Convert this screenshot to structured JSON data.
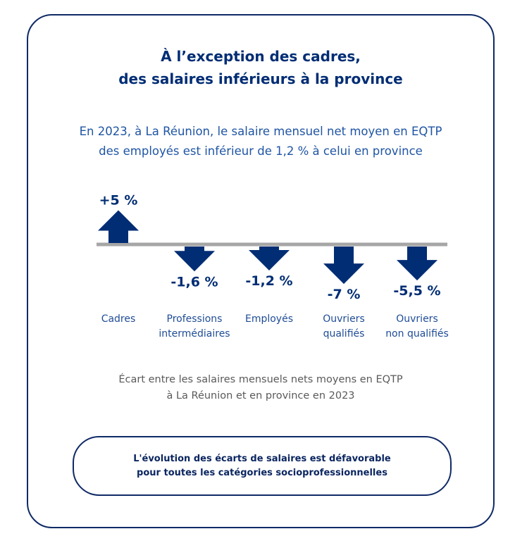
{
  "title": {
    "line1": "À l’exception des cadres,",
    "line2": "des salaires inférieurs à la province"
  },
  "subtitle": {
    "line1": "En 2023, à La Réunion, le salaire mensuel net moyen en EQTP",
    "line2": "des employés est inférieur de 1,2 % à celui en province"
  },
  "chart_data": {
    "type": "bar",
    "title": "Écart entre les salaires mensuels nets moyens en EQTP à La Réunion et en province en 2023",
    "unit": "%",
    "categories": [
      {
        "line1": "Cadres",
        "line2": ""
      },
      {
        "line1": "Professions",
        "line2": "intermédiaires"
      },
      {
        "line1": "Employés",
        "line2": ""
      },
      {
        "line1": "Ouvriers",
        "line2": "qualifiés"
      },
      {
        "line1": "Ouvriers",
        "line2": "non qualifiés"
      }
    ],
    "values": [
      5,
      -1.6,
      -1.2,
      -7,
      -5.5
    ],
    "value_labels": [
      "+5 %",
      "-1,6 %",
      "-1,2 %",
      "-7 %",
      "-5,5 %"
    ],
    "colors": {
      "arrow": "#002d74",
      "baseline": "#a6a6a6"
    }
  },
  "caption": {
    "line1": "Écart entre les salaires mensuels nets moyens en EQTP",
    "line2": "à La Réunion et en province en 2023"
  },
  "note": {
    "line1": "L'évolution des écarts de salaires est défavorable",
    "line2": "pour toutes les catégories socioprofessionnelles"
  }
}
